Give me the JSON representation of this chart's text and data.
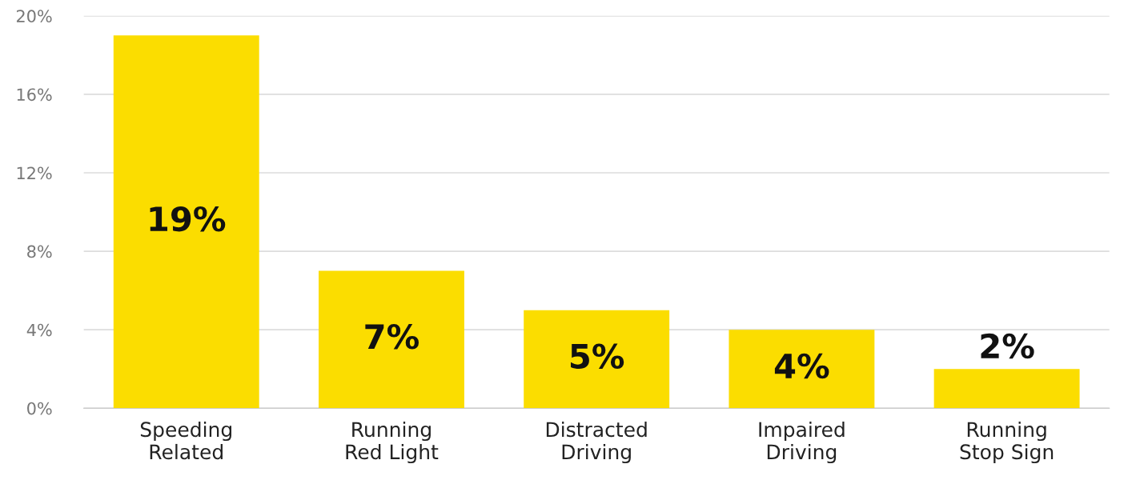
{
  "chart_data": {
    "type": "bar",
    "categories": [
      "Speeding\nRelated",
      "Running\nRed Light",
      "Distracted\nDriving",
      "Impaired\nDriving",
      "Running\nStop Sign"
    ],
    "values": [
      19,
      7,
      5,
      4,
      2
    ],
    "value_labels": [
      "19%",
      "7%",
      "5%",
      "4%",
      "2%"
    ],
    "color": "#fbdd00",
    "ylim": [
      0,
      20
    ],
    "yticks": [
      {
        "value": 0,
        "label": "0%"
      },
      {
        "value": 4,
        "label": "4%"
      },
      {
        "value": 8,
        "label": "8%"
      },
      {
        "value": 12,
        "label": "12%"
      },
      {
        "value": 16,
        "label": "16%"
      },
      {
        "value": 20,
        "label": "20%"
      }
    ],
    "grid": "y"
  }
}
